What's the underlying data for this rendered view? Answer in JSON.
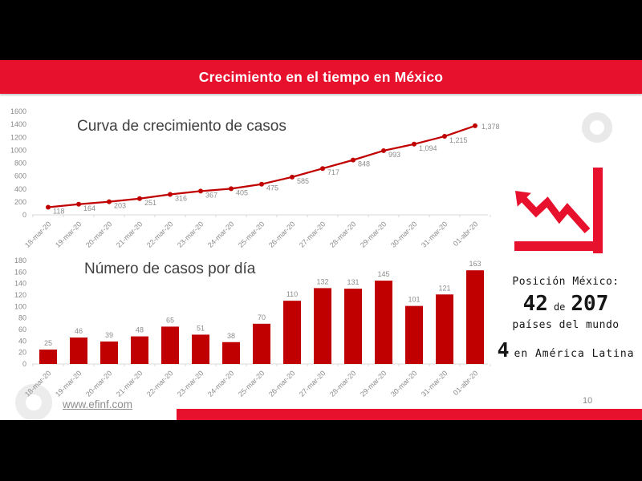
{
  "header": {
    "title": "Crecimiento en el tiempo en México"
  },
  "chart_data": [
    {
      "type": "line",
      "title": "Curva de crecimiento de casos",
      "categories": [
        "18-mar-20",
        "19-mar-20",
        "20-mar-20",
        "21-mar-20",
        "22-mar-20",
        "23-mar-20",
        "24-mar-20",
        "25-mar-20",
        "26-mar-20",
        "27-mar-20",
        "28-mar-20",
        "29-mar-20",
        "30-mar-20",
        "31-mar-20",
        "01-abr-20"
      ],
      "values": [
        118,
        164,
        203,
        251,
        316,
        367,
        405,
        475,
        585,
        717,
        848,
        993,
        1094,
        1215,
        1378
      ],
      "value_labels": [
        "118",
        "164",
        "203",
        "251",
        "316",
        "367",
        "405",
        "475",
        "585",
        "717",
        "848",
        "993",
        "1,094",
        "1,215",
        "1,378"
      ],
      "ylim": [
        0,
        1600
      ],
      "ytick_step": 200,
      "grid": false,
      "legend": "none",
      "series_color": "#c00000"
    },
    {
      "type": "bar",
      "title": "Número de casos por día",
      "categories": [
        "18-mar-20",
        "19-mar-20",
        "20-mar-20",
        "21-mar-20",
        "22-mar-20",
        "23-mar-20",
        "24-mar-20",
        "25-mar-20",
        "26-mar-20",
        "27-mar-20",
        "28-mar-20",
        "29-mar-20",
        "30-mar-20",
        "31-mar-20",
        "01-abr-20"
      ],
      "values": [
        25,
        46,
        39,
        48,
        65,
        51,
        38,
        70,
        110,
        132,
        131,
        145,
        101,
        121,
        163
      ],
      "value_labels": [
        "25",
        "46",
        "39",
        "48",
        "65",
        "51",
        "38",
        "70",
        "110",
        "132",
        "131",
        "145",
        "101",
        "121",
        "163"
      ],
      "ylim": [
        0,
        180
      ],
      "ytick_step": 20,
      "grid": false,
      "legend": "none",
      "series_color": "#c00000"
    }
  ],
  "stats_panel": {
    "heading": "Posición México:",
    "world_rank": "42",
    "connector": "de",
    "world_total": "207",
    "world_caption": "países del mundo",
    "latam_rank": "4",
    "latam_caption": "en América Latina"
  },
  "footer": {
    "website": "www.efinf.com",
    "page_number": "10"
  },
  "colors": {
    "accent_red": "#e8112d",
    "series_red": "#c00000",
    "label_gray": "#8a8a8a"
  }
}
